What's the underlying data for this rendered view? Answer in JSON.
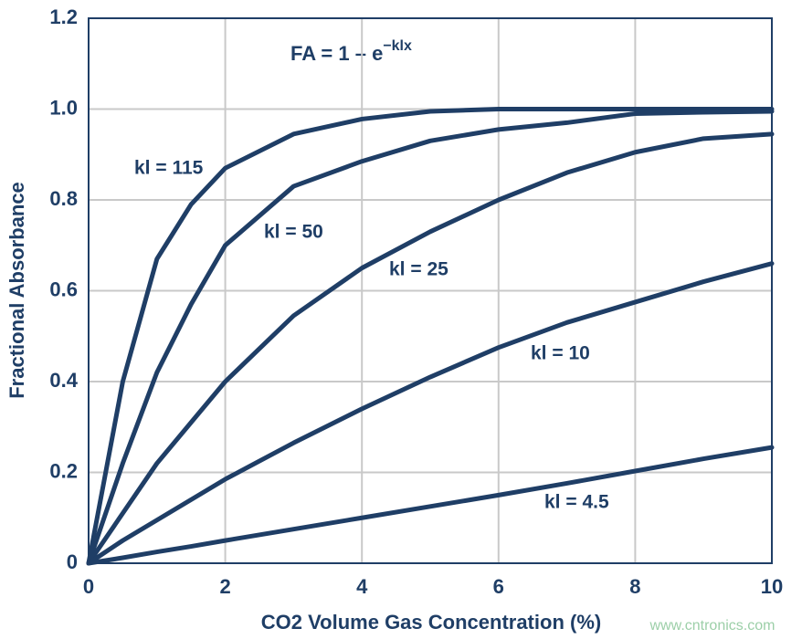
{
  "chart_data": {
    "type": "line",
    "x_label": "CO2 Volume Gas Concentration (%)",
    "y_label": "Fractional Absorbance",
    "formula": {
      "base": "FA = 1 – e",
      "exponent": "−klx"
    },
    "watermark": "www.cntronics.com",
    "x": [
      0,
      0.5,
      1,
      1.5,
      2,
      3,
      4,
      5,
      6,
      7,
      8,
      9,
      10
    ],
    "series": [
      {
        "name": "kl = 115",
        "color": "#1f3e66",
        "values": [
          0,
          0.4,
          0.67,
          0.79,
          0.87,
          0.945,
          0.978,
          0.995,
          1.0,
          1.0,
          1.0,
          1.0,
          1.0
        ]
      },
      {
        "name": "kl = 50",
        "color": "#1f3e66",
        "values": [
          0,
          0.22,
          0.42,
          0.57,
          0.7,
          0.83,
          0.885,
          0.93,
          0.955,
          0.97,
          0.99,
          0.993,
          0.995
        ]
      },
      {
        "name": "kl = 25",
        "color": "#1f3e66",
        "values": [
          0,
          0.11,
          0.22,
          0.31,
          0.4,
          0.545,
          0.65,
          0.73,
          0.8,
          0.86,
          0.905,
          0.935,
          0.945
        ]
      },
      {
        "name": "kl = 10",
        "color": "#1f3e66",
        "values": [
          0,
          0.05,
          0.095,
          0.14,
          0.185,
          0.265,
          0.34,
          0.41,
          0.475,
          0.53,
          0.575,
          0.62,
          0.66
        ]
      },
      {
        "name": "kl = 4.5",
        "color": "#1f3e66",
        "values": [
          0,
          0.012,
          0.025,
          0.037,
          0.05,
          0.075,
          0.1,
          0.125,
          0.15,
          0.176,
          0.203,
          0.23,
          0.255
        ]
      }
    ],
    "xlim": [
      0,
      10
    ],
    "xticks": [
      0,
      2,
      4,
      6,
      8,
      10
    ],
    "ylim": [
      0,
      1.2
    ],
    "yticks": [
      0,
      0.2,
      0.4,
      0.6,
      0.8,
      {
        "value": 1,
        "label": "1.0"
      },
      1.2
    ],
    "grid": true
  }
}
